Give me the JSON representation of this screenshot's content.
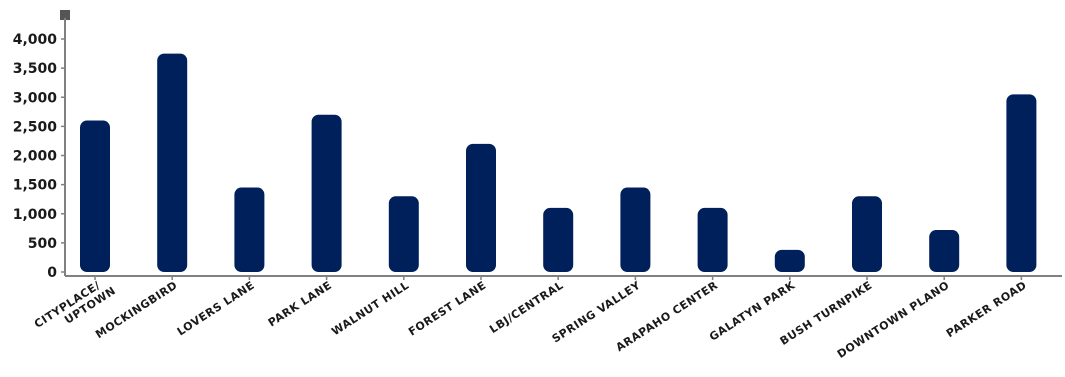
{
  "chart_data": {
    "type": "bar",
    "title": "",
    "xlabel": "",
    "ylabel": "",
    "ylim": [
      0,
      4000
    ],
    "yticks": [
      0,
      500,
      1000,
      1500,
      2000,
      2500,
      3000,
      3500,
      4000
    ],
    "ytick_labels": [
      "0",
      "500",
      "1,000",
      "1,500",
      "2,000",
      "2,500",
      "3,000",
      "3,500",
      "4,000"
    ],
    "grid": false,
    "legend": "none",
    "bar_color": "#00205b",
    "categories": [
      [
        "CITYPLACE/",
        "UPTOWN"
      ],
      [
        "MOCKINGBIRD"
      ],
      [
        "LOVERS LANE"
      ],
      [
        "PARK LANE"
      ],
      [
        "WALNUT HILL"
      ],
      [
        "FOREST LANE"
      ],
      [
        "LBJ/CENTRAL"
      ],
      [
        "SPRING VALLEY"
      ],
      [
        "ARAPAHO CENTER"
      ],
      [
        "GALATYN PARK"
      ],
      [
        "BUSH TURNPIKE"
      ],
      [
        "DOWNTOWN PLANO"
      ],
      [
        "PARKER ROAD"
      ]
    ],
    "values": [
      2600,
      3750,
      1450,
      2700,
      1300,
      2200,
      1100,
      1450,
      1100,
      380,
      1300,
      720,
      3050
    ]
  }
}
